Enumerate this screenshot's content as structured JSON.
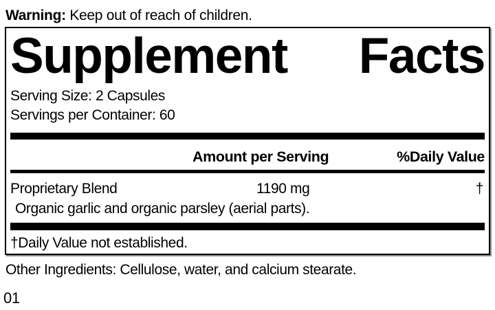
{
  "warning": {
    "label": "Warning:",
    "text": " Keep out of reach of children."
  },
  "panel": {
    "title_word1": "Supplement",
    "title_word2": "Facts",
    "serving_size": "Serving Size: 2 Capsules",
    "servings_per_container": "Servings per Container: 60",
    "columns": {
      "amount": "Amount per Serving",
      "daily_value": "%Daily Value"
    },
    "rows": [
      {
        "name": "Proprietary Blend",
        "amount": "1190 mg",
        "daily_value": "†",
        "description": "Organic garlic and organic parsley (aerial parts)."
      }
    ],
    "footnote": "†Daily Value not established."
  },
  "other_ingredients": "Other Ingredients: Cellulose, water, and calcium stearate.",
  "product_code": "01",
  "colors": {
    "text": "#000000",
    "background": "#ffffff",
    "rule": "#000000"
  }
}
